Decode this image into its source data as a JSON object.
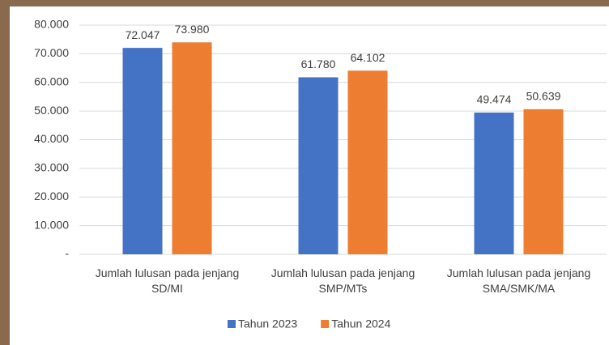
{
  "chart_data": {
    "type": "bar",
    "categories": [
      "Jumlah lulusan pada jenjang SD/MI",
      "Jumlah lulusan pada jenjang SMP/MTs",
      "Jumlah lulusan pada jenjang SMA/SMK/MA"
    ],
    "series": [
      {
        "name": "Tahun 2023",
        "color": "#4472c4",
        "values": [
          72047,
          61780,
          49474
        ],
        "value_labels": [
          "72.047",
          "61.780",
          "49.474"
        ]
      },
      {
        "name": "Tahun 2024",
        "color": "#ed7d31",
        "values": [
          73980,
          64102,
          50639
        ],
        "value_labels": [
          "73.980",
          "64.102",
          "50.639"
        ]
      }
    ],
    "ylim": [
      0,
      80000
    ],
    "yticks": [
      {
        "value": 0,
        "label": "-"
      },
      {
        "value": 10000,
        "label": "10.000"
      },
      {
        "value": 20000,
        "label": "20.000"
      },
      {
        "value": 30000,
        "label": "30.000"
      },
      {
        "value": 40000,
        "label": "40.000"
      },
      {
        "value": 50000,
        "label": "50.000"
      },
      {
        "value": 60000,
        "label": "60.000"
      },
      {
        "value": 70000,
        "label": "70.000"
      },
      {
        "value": 80000,
        "label": "80.000"
      }
    ],
    "grid": true,
    "legend": "bottom"
  }
}
